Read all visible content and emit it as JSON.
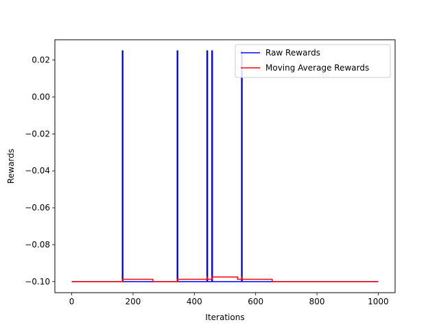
{
  "chart_data": {
    "type": "line",
    "title": "",
    "xlabel": "Iterations",
    "ylabel": "Rewards",
    "xlim": [
      -55,
      1055
    ],
    "ylim": [
      -0.106,
      0.031
    ],
    "xticks": [
      0,
      200,
      400,
      600,
      800,
      1000
    ],
    "xtick_labels": [
      "0",
      "200",
      "400",
      "600",
      "800",
      "1000"
    ],
    "yticks": [
      -0.1,
      -0.08,
      -0.06,
      -0.04,
      -0.02,
      0.0,
      0.02
    ],
    "ytick_labels": [
      "−0.10",
      "−0.08",
      "−0.06",
      "−0.04",
      "−0.02",
      "0.00",
      "0.02"
    ],
    "grid": false,
    "legend": "top-right",
    "series": [
      {
        "name": "Raw Rewards",
        "color": "#0000ff",
        "x": [
          0,
          165,
          165,
          167,
          167,
          344,
          344,
          346,
          346,
          441,
          441,
          443,
          443,
          457,
          457,
          459,
          459,
          554,
          554,
          556,
          556,
          1000
        ],
        "y": [
          -0.1,
          -0.1,
          0.025,
          0.025,
          -0.1,
          -0.1,
          0.025,
          0.025,
          -0.1,
          -0.1,
          0.025,
          0.025,
          -0.1,
          -0.1,
          0.025,
          0.025,
          -0.1,
          -0.1,
          0.025,
          0.025,
          -0.1,
          -0.1
        ]
      },
      {
        "name": "Moving Average Rewards",
        "color": "#ff0000",
        "x": [
          0,
          165,
          165,
          265,
          265,
          344,
          344,
          441,
          441,
          443,
          443,
          457,
          457,
          459,
          459,
          541,
          541,
          554,
          554,
          556,
          556,
          654,
          654,
          1000
        ],
        "y": [
          -0.1,
          -0.1,
          -0.09875,
          -0.09875,
          -0.1,
          -0.1,
          -0.09875,
          -0.09875,
          -0.0975,
          -0.0975,
          -0.09875,
          -0.09875,
          -0.0975,
          -0.0975,
          -0.0975,
          -0.0975,
          -0.09875,
          -0.09875,
          -0.0975,
          -0.0975,
          -0.09875,
          -0.09875,
          -0.1,
          -0.1
        ]
      }
    ]
  }
}
